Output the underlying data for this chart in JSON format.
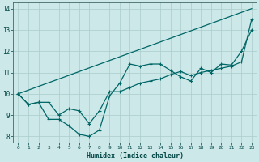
{
  "xlabel": "Humidex (Indice chaleur)",
  "xlim": [
    -0.5,
    23.5
  ],
  "ylim": [
    7.7,
    14.3
  ],
  "xticks": [
    0,
    1,
    2,
    3,
    4,
    5,
    6,
    7,
    8,
    9,
    10,
    11,
    12,
    13,
    14,
    15,
    16,
    17,
    18,
    19,
    20,
    21,
    22,
    23
  ],
  "yticks": [
    8,
    9,
    10,
    11,
    12,
    13,
    14
  ],
  "background_color": "#cce8e8",
  "grid_color": "#aacccc",
  "line_color": "#006666",
  "line1_x": [
    0,
    1,
    2,
    3,
    4,
    5,
    6,
    7,
    8,
    9,
    10,
    11,
    12,
    13,
    14,
    15,
    16,
    17,
    18,
    19,
    20,
    21,
    22,
    23
  ],
  "line1_y": [
    10.0,
    9.5,
    9.6,
    8.8,
    8.8,
    8.5,
    8.1,
    8.0,
    8.3,
    9.9,
    10.5,
    11.4,
    11.3,
    11.4,
    11.4,
    11.1,
    10.8,
    10.6,
    11.2,
    11.0,
    11.4,
    11.35,
    12.0,
    13.0
  ],
  "line2_x": [
    0,
    1,
    2,
    3,
    4,
    5,
    6,
    7,
    8,
    9,
    10,
    11,
    12,
    13,
    14,
    15,
    16,
    17,
    18,
    19,
    20,
    21,
    22,
    23
  ],
  "line2_y": [
    10.0,
    9.5,
    9.6,
    9.6,
    9.0,
    9.3,
    9.2,
    8.6,
    9.2,
    10.1,
    10.1,
    10.3,
    10.5,
    10.6,
    10.7,
    10.9,
    11.05,
    10.85,
    11.0,
    11.1,
    11.2,
    11.3,
    11.5,
    13.5
  ],
  "line3_x": [
    0,
    23
  ],
  "line3_y": [
    10.0,
    14.0
  ]
}
